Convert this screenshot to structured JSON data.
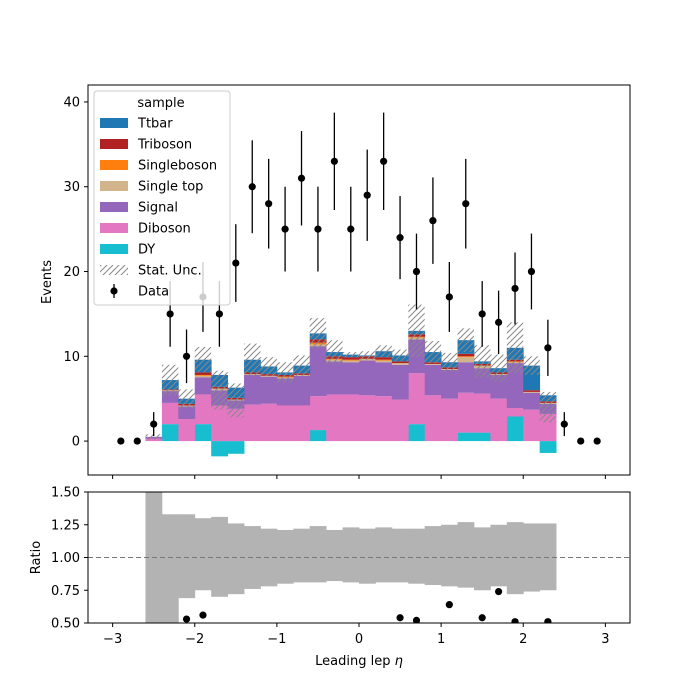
{
  "chart_data": [
    {
      "type": "bar",
      "stacked": true,
      "ylabel": "Events",
      "ylim": [
        -4,
        42
      ],
      "xlim": [
        -3.3,
        3.3
      ],
      "y_ticks": [
        "0",
        "10",
        "20",
        "30",
        "40"
      ],
      "y_tick_values": [
        0,
        10,
        20,
        30,
        40
      ],
      "bin_edges": [
        -2.6,
        -2.4,
        -2.2,
        -2.0,
        -1.8,
        -1.6,
        -1.4,
        -1.2,
        -1.0,
        -0.8,
        -0.6,
        -0.4,
        -0.2,
        0.0,
        0.2,
        0.4,
        0.6,
        0.8,
        1.0,
        1.2,
        1.4,
        1.6,
        1.8,
        2.0,
        2.2,
        2.4
      ],
      "stack_order": [
        "DY",
        "Diboson",
        "Signal",
        "Single top",
        "Singleboson",
        "Triboson",
        "Ttbar"
      ],
      "series": [
        {
          "name": "DY",
          "color": "#17becf",
          "values": [
            0,
            2,
            0,
            2,
            -1.8,
            -1.5,
            0,
            0,
            0,
            0,
            1.3,
            0,
            0,
            0,
            0,
            0,
            2,
            0,
            0,
            1,
            1,
            0,
            2.9,
            0,
            -1.4,
            1.2
          ]
        },
        {
          "name": "Diboson",
          "color": "#e377c2",
          "values": [
            0.3,
            2.5,
            2.6,
            3.5,
            4.2,
            3.8,
            4.3,
            4.4,
            4.2,
            4.2,
            4.0,
            5.5,
            5.5,
            5.4,
            5.3,
            4.9,
            6,
            5.4,
            5.0,
            4.7,
            4.6,
            5.0,
            1.0,
            3.7,
            3.2,
            2.1
          ]
        },
        {
          "name": "Signal",
          "color": "#9467bd",
          "values": [
            0.2,
            1.4,
            1.5,
            2.0,
            1.8,
            1.0,
            3.5,
            3.2,
            3.2,
            3.5,
            5.9,
            3.9,
            3.8,
            4.1,
            4.0,
            4.1,
            4.0,
            3.6,
            3.4,
            3.6,
            3.0,
            2.8,
            5.3,
            2.0,
            1.2,
            1.4
          ]
        },
        {
          "name": "Single top",
          "color": "#d2b48c",
          "values": [
            0,
            0.1,
            0.1,
            0.2,
            0.2,
            0.1,
            0.1,
            0.1,
            0.1,
            0.1,
            0.2,
            0.2,
            0.2,
            0.2,
            0.2,
            0.2,
            0.2,
            0.1,
            0.1,
            0.6,
            0.3,
            0.1,
            0.1,
            0.1,
            0.1,
            0.1
          ]
        },
        {
          "name": "Singleboson",
          "color": "#ff7f0e",
          "values": [
            0,
            0,
            0,
            0.1,
            0,
            0,
            0,
            0,
            0.1,
            0,
            0.2,
            0.1,
            0.1,
            0,
            0.1,
            0,
            0.1,
            0,
            0,
            0.1,
            0,
            0,
            0.1,
            0,
            0,
            0
          ]
        },
        {
          "name": "Triboson",
          "color": "#b22222",
          "values": [
            0,
            0.1,
            0.2,
            0.3,
            0.2,
            0.2,
            0.2,
            0.2,
            0.2,
            0.2,
            0.4,
            0.3,
            0.3,
            0.3,
            0.3,
            0.2,
            0.3,
            0.2,
            0.2,
            0.3,
            0.2,
            0.2,
            0.2,
            0.2,
            0.2,
            0.2
          ]
        },
        {
          "name": "Ttbar",
          "color": "#1f77b4",
          "values": [
            0,
            1.1,
            0.6,
            1.5,
            1.4,
            1.2,
            1.5,
            0.9,
            0.3,
            0.9,
            0.7,
            0.5,
            0.3,
            0.1,
            0.7,
            0.7,
            0.4,
            1.2,
            0.6,
            1.6,
            0.3,
            0.5,
            1.4,
            2.9,
            0.7,
            0.8
          ]
        }
      ],
      "stat_unc_half": [
        0.3,
        1.8,
        1.1,
        1.5,
        2.3,
        2.0,
        1.9,
        1.1,
        1.2,
        1.2,
        1.8,
        1.4,
        0.3,
        0.5,
        0.7,
        0.7,
        3.1,
        1.3,
        1.1,
        1.4,
        1.9,
        1.6,
        3.0,
        1.1,
        1.8,
        1.6
      ],
      "data_points": {
        "x": [
          -2.9,
          -2.7,
          -2.5,
          -2.3,
          -2.1,
          -1.9,
          -1.7,
          -1.5,
          -1.3,
          -1.1,
          -0.9,
          -0.7,
          -0.5,
          -0.3,
          -0.1,
          0.1,
          0.3,
          0.5,
          0.7,
          0.9,
          1.1,
          1.3,
          1.5,
          1.7,
          1.9,
          2.1,
          2.3,
          2.5,
          2.7,
          2.9
        ],
        "y": [
          0,
          0,
          2,
          15,
          10,
          17,
          15,
          21,
          30,
          28,
          25,
          31,
          25,
          33,
          25,
          29,
          33,
          24,
          20,
          26,
          17,
          28,
          15,
          14,
          18,
          20,
          11,
          2,
          0,
          0
        ]
      },
      "legend": {
        "title": "sample",
        "position": "upper-left",
        "entries": [
          "Ttbar",
          "Triboson",
          "Singleboson",
          "Single top",
          "Signal",
          "Diboson",
          "DY",
          "Stat. Unc.",
          "Data"
        ]
      }
    },
    {
      "type": "scatter",
      "ylabel": "Ratio",
      "xlabel": "Leading lep $\\eta$",
      "xlabel_text": "Leading lep ",
      "xlabel_symbol": "η",
      "ylim": [
        0.5,
        1.5
      ],
      "xlim": [
        -3.3,
        3.3
      ],
      "reference_line": 1.0,
      "y_ticks": [
        "0.50",
        "0.75",
        "1.00",
        "1.25",
        "1.50"
      ],
      "y_tick_values": [
        0.5,
        0.75,
        1.0,
        1.25,
        1.5
      ],
      "x_ticks": [
        "−3",
        "−2",
        "−1",
        "0",
        "1",
        "2",
        "3"
      ],
      "x_tick_values": [
        -3,
        -2,
        -1,
        0,
        1,
        2,
        3
      ],
      "unc_band_lower": [
        0.0,
        0.0,
        0.69,
        0.75,
        0.7,
        0.72,
        0.76,
        0.78,
        0.8,
        0.81,
        0.81,
        0.82,
        0.81,
        0.8,
        0.81,
        0.81,
        0.8,
        0.79,
        0.78,
        0.77,
        0.75,
        0.78,
        0.72,
        0.74,
        0.75,
        0.79
      ],
      "unc_band_upper": [
        1.5,
        1.33,
        1.33,
        1.3,
        1.31,
        1.26,
        1.24,
        1.22,
        1.21,
        1.22,
        1.24,
        1.21,
        1.23,
        1.22,
        1.23,
        1.22,
        1.22,
        1.24,
        1.25,
        1.27,
        1.23,
        1.25,
        1.27,
        1.26,
        1.26,
        1.38
      ],
      "points": {
        "x": [
          -2.1,
          -1.9,
          0.5,
          0.7,
          1.1,
          1.5,
          1.7,
          1.9,
          2.3
        ],
        "y": [
          0.53,
          0.56,
          0.54,
          0.52,
          0.64,
          0.54,
          0.74,
          0.51,
          0.51
        ]
      }
    }
  ]
}
